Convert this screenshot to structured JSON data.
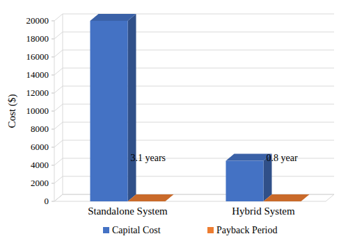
{
  "chart_data": {
    "type": "bar",
    "y_label": "Cost ($)",
    "categories": [
      "Standalone System",
      "Hybrid System"
    ],
    "series": [
      {
        "name": "Capital Cost",
        "color": "#4472c4",
        "values": [
          20000,
          4500
        ]
      },
      {
        "name": "Payback Period",
        "color": "#ed7d31",
        "values": [
          3.1,
          0.8
        ],
        "data_labels": true,
        "value_labels": [
          "3.1 years",
          "0.8 year"
        ]
      }
    ],
    "ylim": [
      0,
      20000
    ],
    "yticks": [
      0,
      2000,
      4000,
      6000,
      8000,
      10000,
      12000,
      14000,
      16000,
      18000,
      20000
    ],
    "grid": true,
    "legend": "bottom"
  }
}
